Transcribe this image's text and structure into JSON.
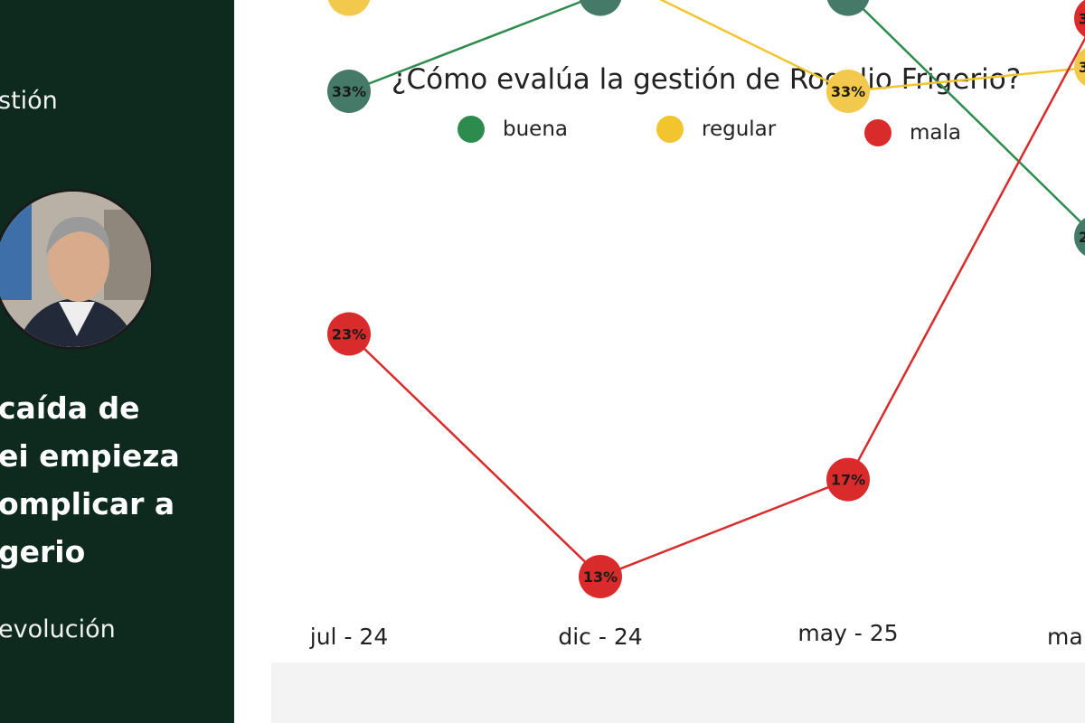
{
  "sidebar": {
    "kicker": "stión",
    "headline_lines": [
      "caída de",
      "ei empieza",
      "omplicar a",
      "gerio"
    ],
    "footer": "evolución",
    "background": "#0e2a1f"
  },
  "chart_data": {
    "type": "line",
    "title": "¿Cómo evalúa la gestión de Rogelio Frigerio?",
    "categories": [
      "jul - 24",
      "dic - 24",
      "may - 25",
      "ma"
    ],
    "legend_position": "top",
    "grid": false,
    "ylim": [
      10,
      40
    ],
    "value_suffix": "%",
    "series": [
      {
        "name": "buena",
        "color": "#2e8b4e",
        "marker_color": "#467a68",
        "values": [
          33,
          37,
          37,
          27
        ]
      },
      {
        "name": "regular",
        "color": "#f2c52e",
        "marker_color": "#f2c94c",
        "values": [
          37,
          38,
          33,
          34
        ]
      },
      {
        "name": "mala",
        "color": "#d92b2b",
        "marker_color": "#d92b2b",
        "values": [
          23,
          13,
          17,
          36
        ]
      }
    ]
  }
}
